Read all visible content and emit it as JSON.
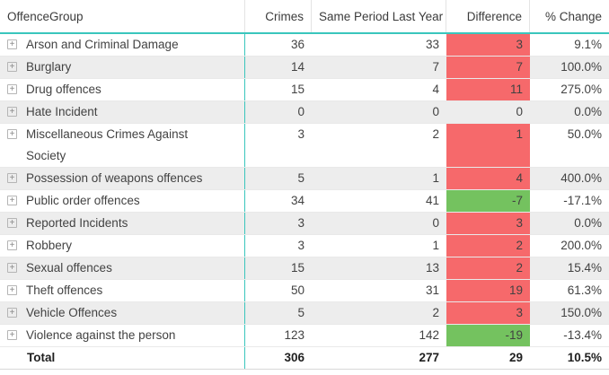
{
  "table": {
    "columns": [
      {
        "label": "OffenceGroup"
      },
      {
        "label": "Crimes"
      },
      {
        "label": "Same Period Last Year"
      },
      {
        "label": "Difference"
      },
      {
        "label": "% Change"
      }
    ],
    "expand_icon": "+",
    "rows": [
      {
        "offence_group": "Arson and Criminal Damage",
        "crimes": "36",
        "same_period_last_year": "33",
        "difference": "3",
        "pct_change": "9.1%"
      },
      {
        "offence_group": "Burglary",
        "crimes": "14",
        "same_period_last_year": "7",
        "difference": "7",
        "pct_change": "100.0%"
      },
      {
        "offence_group": "Drug offences",
        "crimes": "15",
        "same_period_last_year": "4",
        "difference": "11",
        "pct_change": "275.0%"
      },
      {
        "offence_group": "Hate Incident",
        "crimes": "0",
        "same_period_last_year": "0",
        "difference": "0",
        "pct_change": "0.0%"
      },
      {
        "offence_group": "Miscellaneous Crimes Against Society",
        "crimes": "3",
        "same_period_last_year": "2",
        "difference": "1",
        "pct_change": "50.0%"
      },
      {
        "offence_group": "Possession of weapons offences",
        "crimes": "5",
        "same_period_last_year": "1",
        "difference": "4",
        "pct_change": "400.0%"
      },
      {
        "offence_group": "Public order offences",
        "crimes": "34",
        "same_period_last_year": "41",
        "difference": "-7",
        "pct_change": "-17.1%"
      },
      {
        "offence_group": "Reported Incidents",
        "crimes": "3",
        "same_period_last_year": "0",
        "difference": "3",
        "pct_change": "0.0%"
      },
      {
        "offence_group": "Robbery",
        "crimes": "3",
        "same_period_last_year": "1",
        "difference": "2",
        "pct_change": "200.0%"
      },
      {
        "offence_group": "Sexual offences",
        "crimes": "15",
        "same_period_last_year": "13",
        "difference": "2",
        "pct_change": "15.4%"
      },
      {
        "offence_group": "Theft offences",
        "crimes": "50",
        "same_period_last_year": "31",
        "difference": "19",
        "pct_change": "61.3%"
      },
      {
        "offence_group": "Vehicle Offences",
        "crimes": "5",
        "same_period_last_year": "2",
        "difference": "3",
        "pct_change": "150.0%"
      },
      {
        "offence_group": "Violence against the person",
        "crimes": "123",
        "same_period_last_year": "142",
        "difference": "-19",
        "pct_change": "-13.4%"
      }
    ],
    "total": {
      "offence_group": "Total",
      "crimes": "306",
      "same_period_last_year": "277",
      "difference": "29",
      "pct_change": "10.5%"
    }
  },
  "colors": {
    "accent_teal": "#3ac6bd",
    "increase_bg": "#f6696b",
    "decrease_bg": "#74c25f",
    "stripe_bg": "#ededed"
  }
}
